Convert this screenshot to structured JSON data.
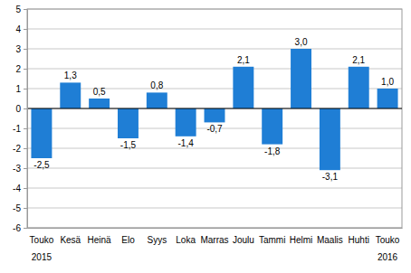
{
  "chart_data": {
    "type": "bar",
    "categories": [
      "Touko",
      "Kesä",
      "Heinä",
      "Elo",
      "Syys",
      "Loka",
      "Marras",
      "Joulu",
      "Tammi",
      "Helmi",
      "Maalis",
      "Huhti",
      "Touko"
    ],
    "values": [
      -2.5,
      1.3,
      0.5,
      -1.5,
      0.8,
      -1.4,
      -0.7,
      2.1,
      -1.8,
      3.0,
      -3.1,
      2.1,
      1.0
    ],
    "value_labels": [
      "-2,5",
      "1,3",
      "0,5",
      "-1,5",
      "0,8",
      "-1,4",
      "-0,7",
      "2,1",
      "-1,8",
      "3,0",
      "-3,1",
      "2,1",
      "1,0"
    ],
    "color": "#1f7ed5",
    "ylim": [
      -6,
      5
    ],
    "yticks": [
      -6,
      -5,
      -4,
      -3,
      -2,
      -1,
      0,
      1,
      2,
      3,
      4,
      5
    ],
    "grid": true,
    "data_labels": true,
    "annotations": [
      "2015",
      "2016"
    ]
  }
}
